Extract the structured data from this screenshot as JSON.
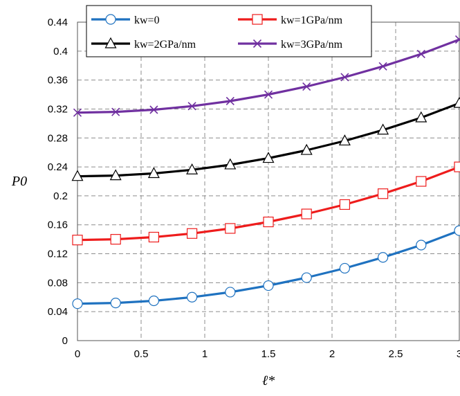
{
  "chart_data": {
    "type": "line",
    "title": "",
    "xlabel": "ℓ*",
    "ylabel": "P0",
    "xlim": [
      0,
      3
    ],
    "ylim": [
      0,
      0.44
    ],
    "x_ticks": [
      "0",
      "0.5",
      "1",
      "1.5",
      "2",
      "2.5",
      "3"
    ],
    "y_ticks": [
      "0",
      "0.04",
      "0.08",
      "0.12",
      "0.16",
      "0.2",
      "0.24",
      "0.28",
      "0.32",
      "0.36",
      "0.4",
      "0.44"
    ],
    "grid": true,
    "legend_position": "top",
    "series": [
      {
        "name": "kw=0",
        "color": "#1f72c0",
        "marker": "circle",
        "x": [
          0,
          0.3,
          0.6,
          0.9,
          1.2,
          1.5,
          1.8,
          2.1,
          2.4,
          2.7,
          3.0
        ],
        "y": [
          0.051,
          0.052,
          0.055,
          0.06,
          0.067,
          0.076,
          0.087,
          0.1,
          0.115,
          0.132,
          0.152
        ]
      },
      {
        "name": "kw=1GPa/nm",
        "color": "#ee1c1c",
        "marker": "square",
        "x": [
          0,
          0.3,
          0.6,
          0.9,
          1.2,
          1.5,
          1.8,
          2.1,
          2.4,
          2.7,
          3.0
        ],
        "y": [
          0.139,
          0.14,
          0.143,
          0.148,
          0.155,
          0.164,
          0.175,
          0.188,
          0.203,
          0.22,
          0.24
        ]
      },
      {
        "name": "kw=2GPa/nm",
        "color": "#000000",
        "marker": "triangle",
        "x": [
          0,
          0.3,
          0.6,
          0.9,
          1.2,
          1.5,
          1.8,
          2.1,
          2.4,
          2.7,
          3.0
        ],
        "y": [
          0.227,
          0.228,
          0.231,
          0.236,
          0.243,
          0.252,
          0.263,
          0.276,
          0.291,
          0.308,
          0.328
        ]
      },
      {
        "name": "kw=3GPa/nm",
        "color": "#7030a0",
        "marker": "x",
        "x": [
          0,
          0.3,
          0.6,
          0.9,
          1.2,
          1.5,
          1.8,
          2.1,
          2.4,
          2.7,
          3.0
        ],
        "y": [
          0.315,
          0.316,
          0.319,
          0.324,
          0.331,
          0.34,
          0.351,
          0.364,
          0.379,
          0.396,
          0.416
        ]
      }
    ]
  }
}
